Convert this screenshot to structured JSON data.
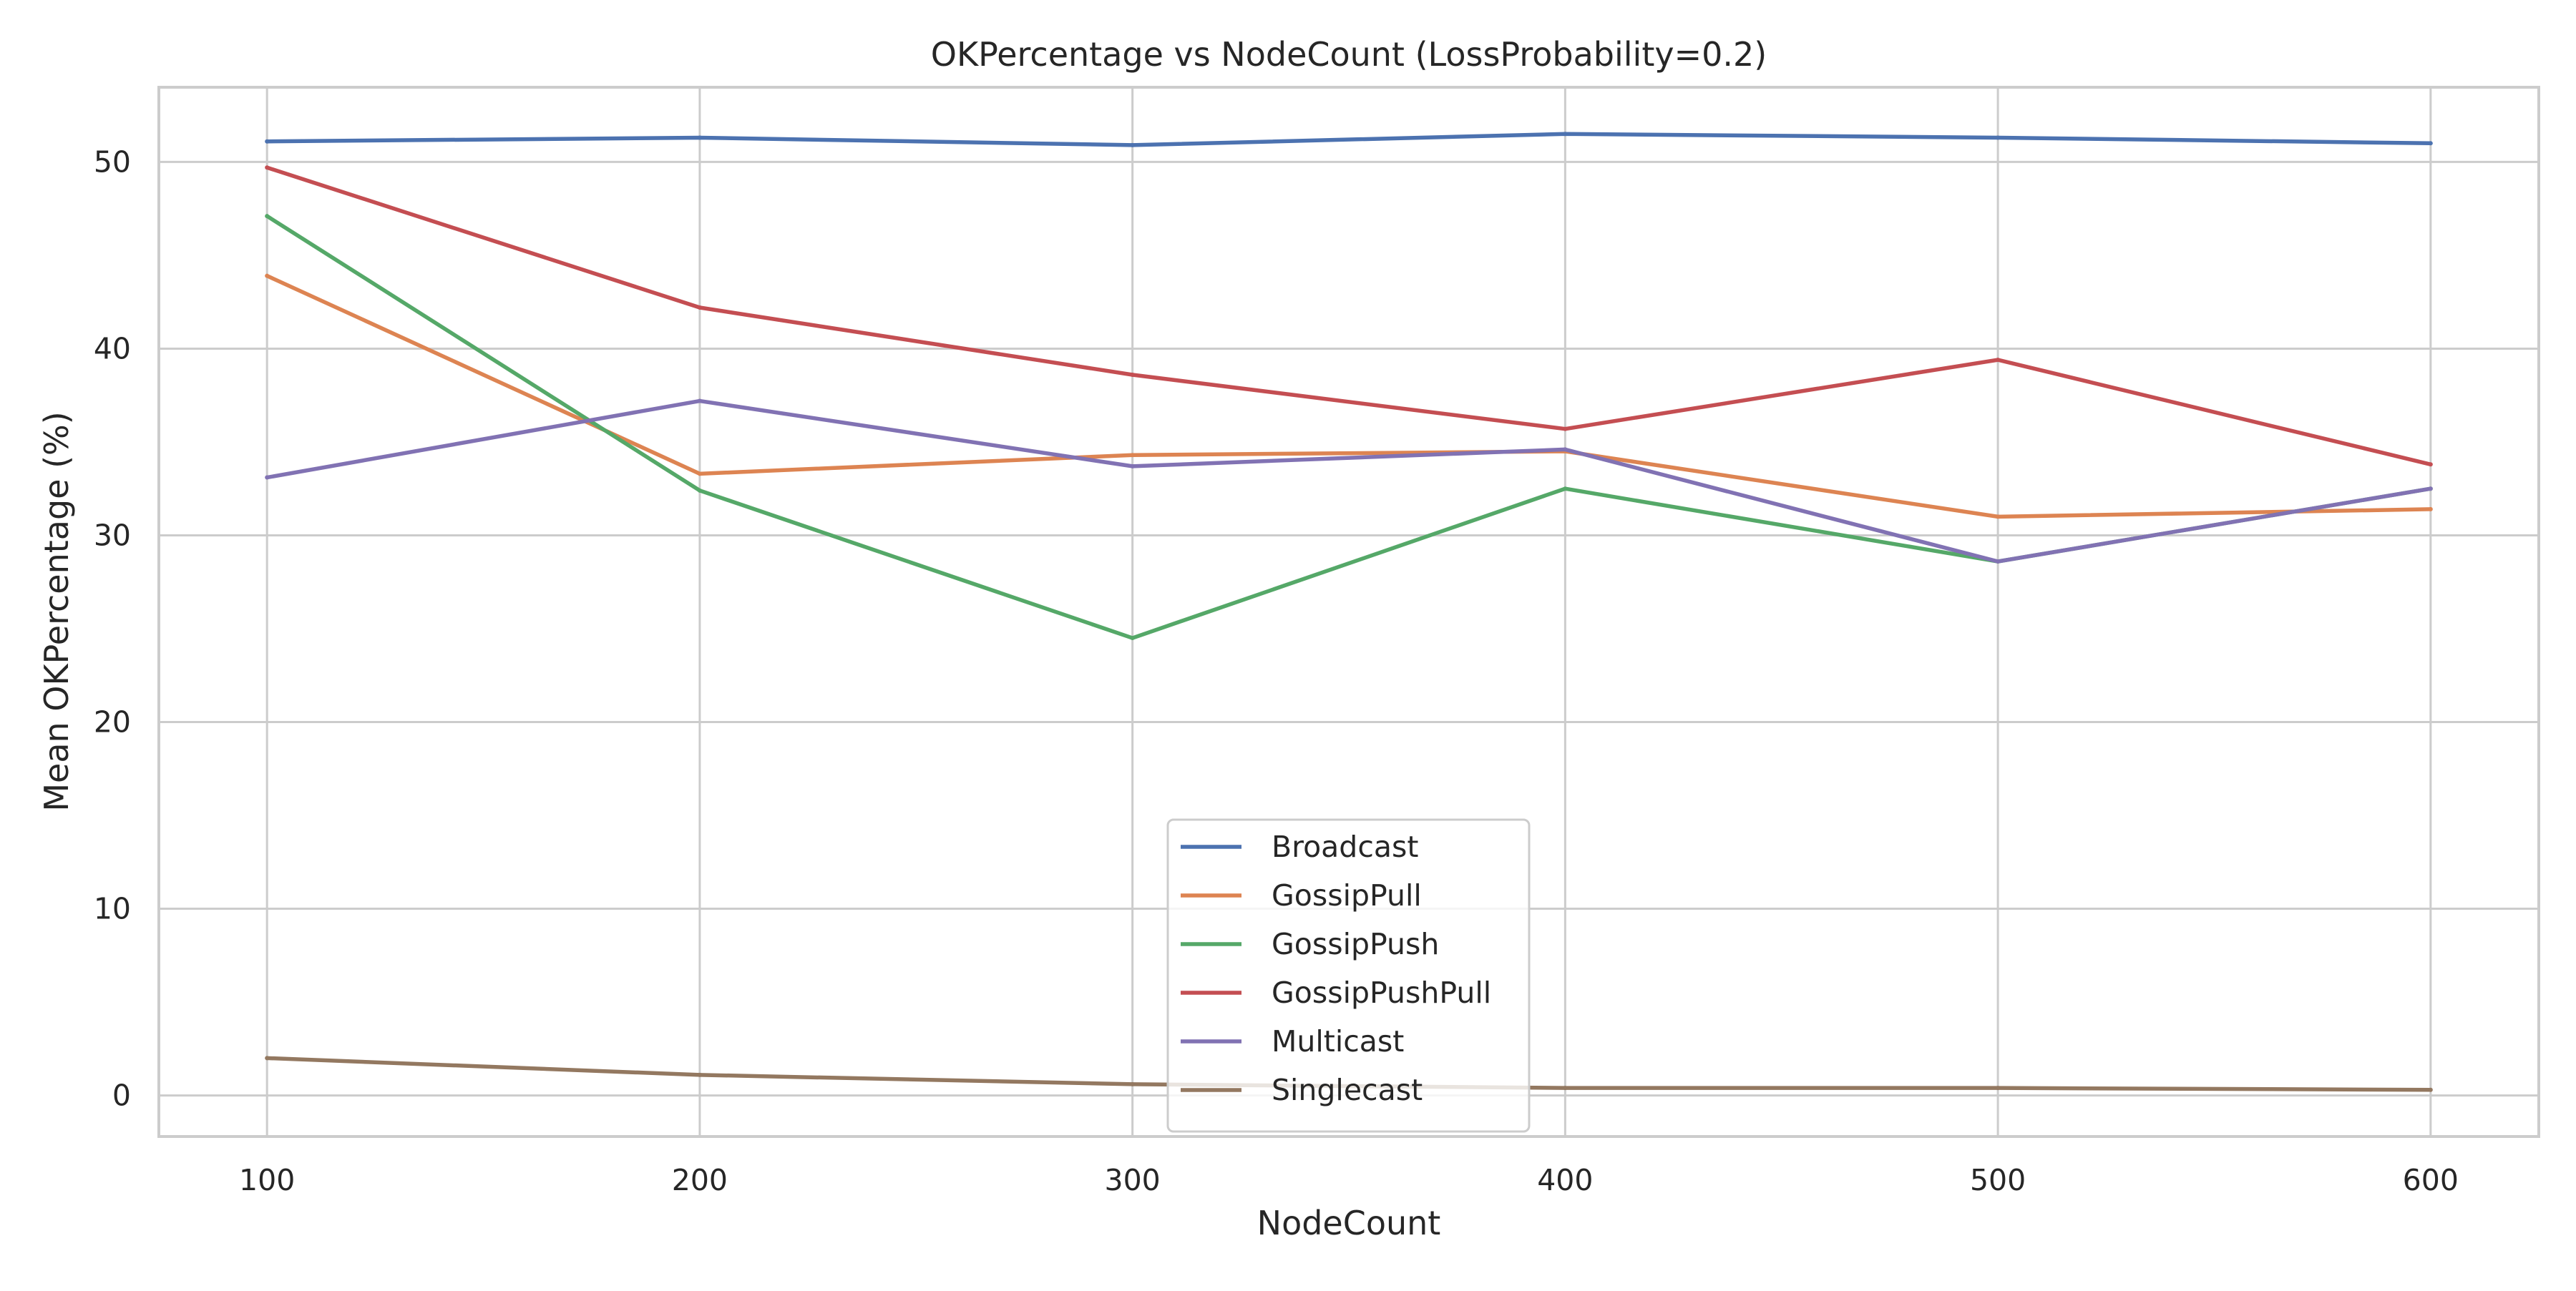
{
  "chart_data": {
    "type": "line",
    "title": "OKPercentage vs NodeCount (LossProbability=0.2)",
    "xlabel": "NodeCount",
    "ylabel": "Mean OKPercentage (%)",
    "x": [
      100,
      200,
      300,
      400,
      500,
      600
    ],
    "xlim": [
      75,
      625
    ],
    "ylim": [
      -2.2,
      54
    ],
    "xticks": [
      100,
      200,
      300,
      400,
      500,
      600
    ],
    "yticks": [
      0,
      10,
      20,
      30,
      40,
      50
    ],
    "grid": true,
    "legend_position": "bottom-center",
    "series": [
      {
        "name": "Broadcast",
        "color": "#4c72b0",
        "values": [
          51.1,
          51.3,
          50.9,
          51.5,
          51.3,
          51.0
        ]
      },
      {
        "name": "GossipPull",
        "color": "#dd8452",
        "values": [
          43.9,
          33.3,
          34.3,
          34.5,
          31.0,
          31.4
        ]
      },
      {
        "name": "GossipPush",
        "color": "#55a868",
        "values": [
          47.1,
          32.4,
          24.5,
          32.5,
          28.6,
          32.5
        ]
      },
      {
        "name": "GossipPushPull",
        "color": "#c44e52",
        "values": [
          49.7,
          42.2,
          38.6,
          35.7,
          39.4,
          33.8
        ]
      },
      {
        "name": "Multicast",
        "color": "#8172b3",
        "values": [
          33.1,
          37.2,
          33.7,
          34.6,
          28.6,
          32.5
        ]
      },
      {
        "name": "Singlecast",
        "color": "#937860",
        "values": [
          2.0,
          1.1,
          0.6,
          0.4,
          0.4,
          0.3
        ]
      }
    ]
  }
}
